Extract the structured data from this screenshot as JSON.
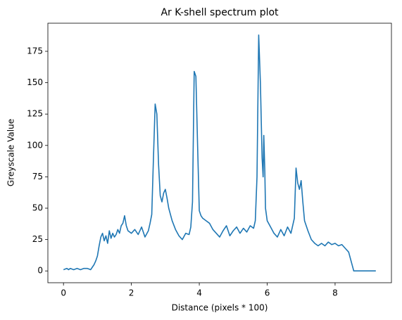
{
  "chart_data": {
    "type": "line",
    "title": "Ar K-shell spectrum plot",
    "x_label": "Distance (pixels * 100)",
    "y_label": "Greyscale Value",
    "x": [
      0,
      0.1,
      0.15,
      0.2,
      0.3,
      0.4,
      0.5,
      0.6,
      0.7,
      0.8,
      0.85,
      0.9,
      0.95,
      1.0,
      1.05,
      1.1,
      1.15,
      1.2,
      1.25,
      1.3,
      1.35,
      1.4,
      1.45,
      1.5,
      1.55,
      1.6,
      1.65,
      1.7,
      1.75,
      1.8,
      1.85,
      1.9,
      2.0,
      2.1,
      2.2,
      2.3,
      2.4,
      2.5,
      2.55,
      2.6,
      2.65,
      2.7,
      2.75,
      2.8,
      2.85,
      2.9,
      2.95,
      3.0,
      3.05,
      3.1,
      3.2,
      3.3,
      3.4,
      3.5,
      3.6,
      3.7,
      3.75,
      3.8,
      3.85,
      3.9,
      3.95,
      4.0,
      4.05,
      4.1,
      4.2,
      4.3,
      4.4,
      4.5,
      4.6,
      4.7,
      4.8,
      4.9,
      5.0,
      5.1,
      5.2,
      5.3,
      5.4,
      5.5,
      5.6,
      5.65,
      5.7,
      5.75,
      5.8,
      5.85,
      5.88,
      5.9,
      5.93,
      5.95,
      6.0,
      6.1,
      6.2,
      6.3,
      6.4,
      6.5,
      6.6,
      6.7,
      6.8,
      6.85,
      6.9,
      6.95,
      7.0,
      7.05,
      7.1,
      7.2,
      7.3,
      7.4,
      7.5,
      7.6,
      7.7,
      7.8,
      7.9,
      8.0,
      8.1,
      8.2,
      8.3,
      8.4,
      8.45,
      8.5,
      8.55,
      8.6,
      9.2
    ],
    "values": [
      1,
      2,
      1,
      2,
      1,
      2,
      1,
      2,
      2,
      1,
      3,
      5,
      8,
      12,
      20,
      27,
      30,
      24,
      28,
      22,
      32,
      26,
      30,
      27,
      29,
      33,
      30,
      36,
      38,
      44,
      36,
      32,
      30,
      33,
      29,
      35,
      27,
      32,
      38,
      45,
      90,
      133,
      125,
      85,
      60,
      55,
      62,
      65,
      58,
      50,
      40,
      33,
      28,
      25,
      30,
      29,
      35,
      55,
      159,
      155,
      100,
      48,
      44,
      42,
      40,
      38,
      33,
      30,
      27,
      32,
      36,
      28,
      32,
      35,
      30,
      34,
      31,
      36,
      34,
      40,
      75,
      188,
      150,
      90,
      75,
      108,
      80,
      50,
      40,
      35,
      30,
      27,
      33,
      28,
      35,
      30,
      42,
      82,
      70,
      65,
      72,
      55,
      40,
      32,
      25,
      22,
      20,
      22,
      20,
      23,
      21,
      22,
      20,
      21,
      18,
      15,
      10,
      5,
      0,
      0,
      0
    ],
    "color": "#1f77b4",
    "xlim": [
      -0.46,
      9.66
    ],
    "ylim": [
      -9.4,
      197.4
    ],
    "xticks": [
      0,
      2,
      4,
      6,
      8
    ],
    "yticks": [
      0,
      25,
      50,
      75,
      100,
      125,
      150,
      175
    ]
  }
}
